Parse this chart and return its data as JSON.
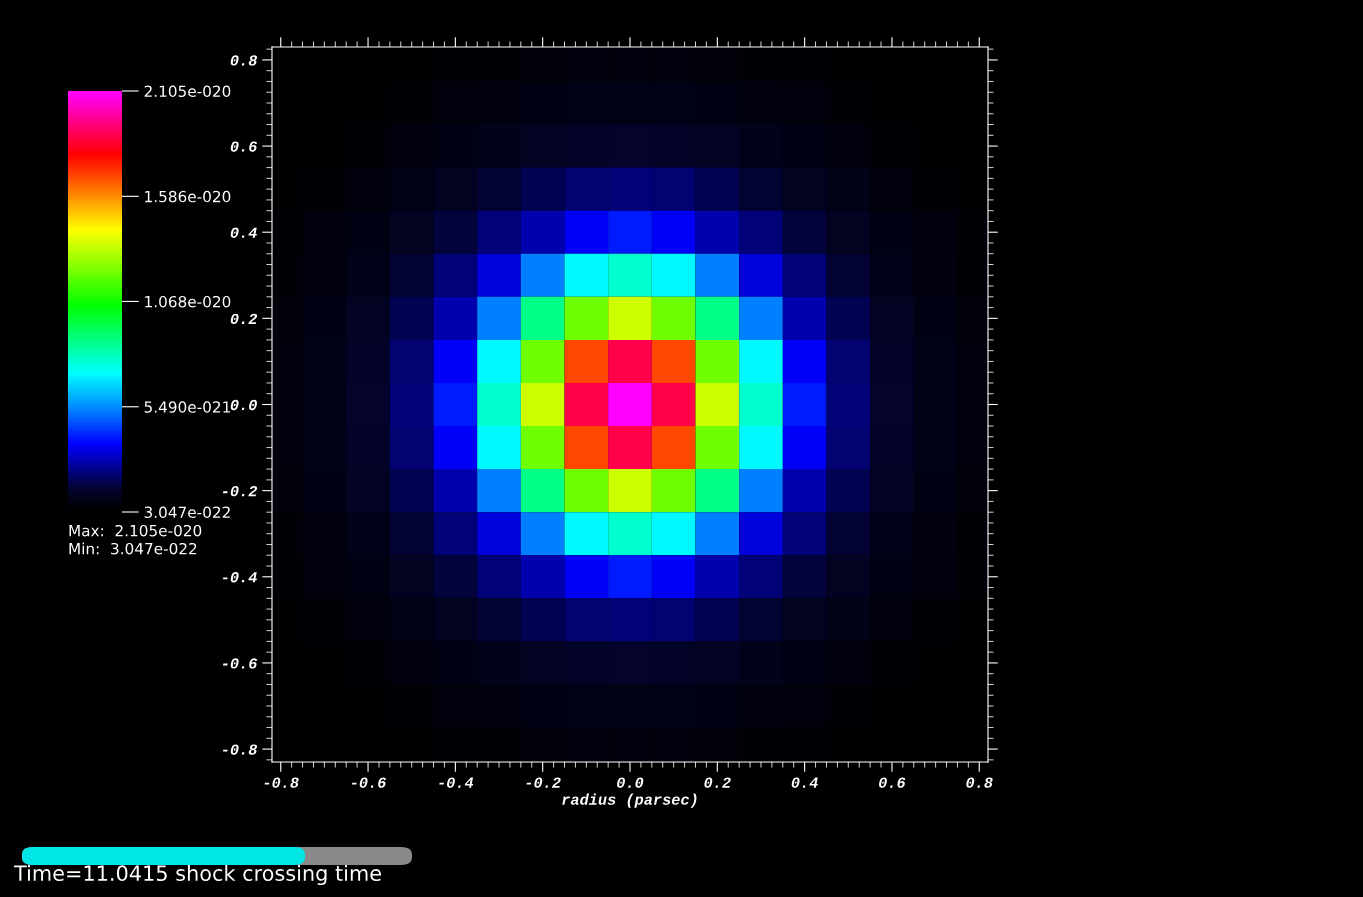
{
  "chart_data": {
    "type": "heatmap",
    "xlabel": "radius (parsec)",
    "x": [
      -0.8,
      -0.7,
      -0.6,
      -0.5,
      -0.4,
      -0.3,
      -0.2,
      -0.1,
      0.0,
      0.1,
      0.2,
      0.3,
      0.4,
      0.5,
      0.6,
      0.7,
      0.8
    ],
    "y": [
      0.8,
      0.7,
      0.6,
      0.5,
      0.4,
      0.3,
      0.2,
      0.1,
      0.0,
      -0.1,
      -0.2,
      -0.3,
      -0.4,
      -0.5,
      -0.6,
      -0.7,
      -0.8
    ],
    "cells": [
      [
        3.047e-22,
        3.2e-22,
        3.5e-22,
        4.1e-22,
        4.7e-22,
        5.3e-22,
        5.9e-22,
        6.3e-22,
        6.4e-22,
        6.3e-22,
        5.9e-22,
        5.3e-22,
        4.7e-22,
        4.1e-22,
        3.5e-22,
        3.2e-22,
        3.047e-22
      ],
      [
        3.2e-22,
        3.7e-22,
        4.3e-22,
        5.2e-22,
        6.3e-22,
        7.2e-22,
        8.2e-22,
        8.8e-22,
        9e-22,
        8.8e-22,
        8.2e-22,
        7.2e-22,
        6.3e-22,
        5.2e-22,
        4.3e-22,
        3.7e-22,
        3.2e-22
      ],
      [
        3.5e-22,
        4.3e-22,
        5.4e-22,
        6.8e-22,
        8.4e-22,
        1e-21,
        1.2e-21,
        1.35e-21,
        1.4e-21,
        1.35e-21,
        1.2e-21,
        1e-21,
        8.4e-22,
        6.8e-22,
        5.4e-22,
        4.3e-22,
        3.5e-22
      ],
      [
        4.1e-22,
        5.2e-22,
        6.8e-22,
        8.8e-22,
        1.15e-21,
        1.5e-21,
        1.8e-21,
        2.1e-21,
        2.2e-21,
        2.1e-21,
        1.8e-21,
        1.5e-21,
        1.15e-21,
        8.8e-22,
        6.8e-22,
        5.2e-22,
        4.1e-22
      ],
      [
        4.7e-22,
        6.3e-22,
        8.4e-22,
        1.15e-21,
        1.6e-21,
        2.2e-21,
        2.8e-21,
        3.6e-21,
        4e-21,
        3.6e-21,
        2.8e-21,
        2.2e-21,
        1.6e-21,
        1.15e-21,
        8.4e-22,
        6.3e-22,
        4.7e-22
      ],
      [
        5.3e-22,
        7.2e-22,
        1e-21,
        1.5e-21,
        2.2e-21,
        3.3e-21,
        5.3e-21,
        7.1e-21,
        7.8e-21,
        7.1e-21,
        5.3e-21,
        3.3e-21,
        2.2e-21,
        1.5e-21,
        1e-21,
        7.2e-22,
        5.3e-22
      ],
      [
        5.9e-22,
        8.2e-22,
        1.2e-21,
        1.8e-21,
        2.8e-21,
        5.3e-21,
        8.7e-21,
        1.21e-20,
        1.35e-20,
        1.21e-20,
        8.7e-21,
        5.3e-21,
        2.8e-21,
        1.8e-21,
        1.2e-21,
        8.2e-22,
        5.9e-22
      ],
      [
        6.3e-22,
        8.8e-22,
        1.35e-21,
        2.1e-21,
        3.6e-21,
        7.1e-21,
        1.21e-20,
        1.69e-20,
        1.88e-20,
        1.69e-20,
        1.21e-20,
        7.1e-21,
        3.6e-21,
        2.1e-21,
        1.35e-21,
        8.8e-22,
        6.3e-22
      ],
      [
        6.4e-22,
        9e-22,
        1.4e-21,
        2.2e-21,
        4e-21,
        7.8e-21,
        1.35e-20,
        1.88e-20,
        2.105e-20,
        1.88e-20,
        1.35e-20,
        7.8e-21,
        4e-21,
        2.2e-21,
        1.4e-21,
        9e-22,
        6.4e-22
      ],
      [
        6.3e-22,
        8.8e-22,
        1.35e-21,
        2.1e-21,
        3.6e-21,
        7.1e-21,
        1.21e-20,
        1.69e-20,
        1.88e-20,
        1.69e-20,
        1.21e-20,
        7.1e-21,
        3.6e-21,
        2.1e-21,
        1.35e-21,
        8.8e-22,
        6.3e-22
      ],
      [
        5.9e-22,
        8.2e-22,
        1.2e-21,
        1.8e-21,
        2.8e-21,
        5.3e-21,
        8.7e-21,
        1.21e-20,
        1.35e-20,
        1.21e-20,
        8.7e-21,
        5.3e-21,
        2.8e-21,
        1.8e-21,
        1.2e-21,
        8.2e-22,
        5.9e-22
      ],
      [
        5.3e-22,
        7.2e-22,
        1e-21,
        1.5e-21,
        2.2e-21,
        3.3e-21,
        5.3e-21,
        7.1e-21,
        7.8e-21,
        7.1e-21,
        5.3e-21,
        3.3e-21,
        2.2e-21,
        1.5e-21,
        1e-21,
        7.2e-22,
        5.3e-22
      ],
      [
        4.7e-22,
        6.3e-22,
        8.4e-22,
        1.15e-21,
        1.6e-21,
        2.2e-21,
        2.8e-21,
        3.6e-21,
        4e-21,
        3.6e-21,
        2.8e-21,
        2.2e-21,
        1.6e-21,
        1.15e-21,
        8.4e-22,
        6.3e-22,
        4.7e-22
      ],
      [
        4.1e-22,
        5.2e-22,
        6.8e-22,
        8.8e-22,
        1.15e-21,
        1.5e-21,
        1.8e-21,
        2.1e-21,
        2.2e-21,
        2.1e-21,
        1.8e-21,
        1.5e-21,
        1.15e-21,
        8.8e-22,
        6.8e-22,
        5.2e-22,
        4.1e-22
      ],
      [
        3.5e-22,
        4.3e-22,
        5.4e-22,
        6.8e-22,
        8.4e-22,
        1e-21,
        1.2e-21,
        1.35e-21,
        1.4e-21,
        1.35e-21,
        1.2e-21,
        1e-21,
        8.4e-22,
        6.8e-22,
        5.4e-22,
        4.3e-22,
        3.5e-22
      ],
      [
        3.2e-22,
        3.7e-22,
        4.3e-22,
        5.2e-22,
        6.3e-22,
        7.2e-22,
        8.2e-22,
        8.8e-22,
        9e-22,
        8.8e-22,
        8.2e-22,
        7.2e-22,
        6.3e-22,
        5.2e-22,
        4.3e-22,
        3.7e-22,
        3.2e-22
      ],
      [
        3.047e-22,
        3.2e-22,
        3.5e-22,
        4.1e-22,
        4.7e-22,
        5.3e-22,
        5.9e-22,
        6.3e-22,
        6.4e-22,
        6.3e-22,
        5.9e-22,
        5.3e-22,
        4.7e-22,
        4.1e-22,
        3.5e-22,
        3.2e-22,
        3.047e-22
      ]
    ],
    "xlim": [
      -0.82,
      0.82
    ],
    "ylim": [
      -0.83,
      0.83
    ],
    "xticks": [
      -0.8,
      -0.6,
      -0.4,
      -0.2,
      {
        "value": 0,
        "label": "0.0"
      },
      0.2,
      0.4,
      0.6,
      0.8
    ],
    "yticks": [
      -0.8,
      -0.6,
      -0.4,
      -0.2,
      {
        "value": 0,
        "label": "0.0"
      },
      0.2,
      0.4,
      0.6,
      0.8
    ],
    "clim": [
      3.047e-22,
      2.105e-20
    ],
    "cticks": [
      {
        "value": 3.047e-22,
        "label": "3.047e-022"
      },
      {
        "value": 5.49e-21,
        "label": "5.490e-021"
      },
      {
        "value": 1.068e-20,
        "label": "1.068e-020"
      },
      {
        "value": 1.586e-20,
        "label": "1.586e-020"
      },
      {
        "value": 2.105e-20,
        "label": "2.105e-020"
      }
    ],
    "annotations": [
      "Max:  2.105e-020",
      "Min:  3.047e-022",
      "Time=11.0415 shock crossing time"
    ],
    "grid": false
  }
}
